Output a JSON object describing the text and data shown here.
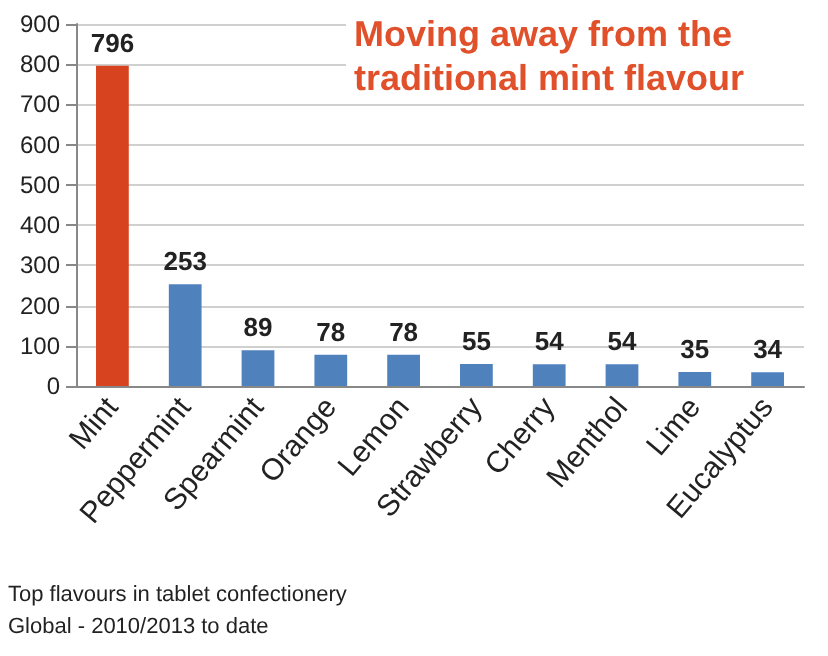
{
  "chart_data": {
    "type": "bar",
    "title": "Moving away from the traditional mint flavour",
    "categories": [
      "Mint",
      "Peppermint",
      "Spearmint",
      "Orange",
      "Lemon",
      "Strawberry",
      "Cherry",
      "Menthol",
      "Lime",
      "Eucalyptus"
    ],
    "values": [
      796,
      253,
      89,
      78,
      78,
      55,
      54,
      54,
      35,
      34
    ],
    "colors": [
      "#d7431f",
      "#4f81bd",
      "#4f81bd",
      "#4f81bd",
      "#4f81bd",
      "#4f81bd",
      "#4f81bd",
      "#4f81bd",
      "#4f81bd",
      "#4f81bd"
    ],
    "ylim": [
      0,
      900
    ],
    "yticks": [
      0,
      100,
      200,
      300,
      400,
      500,
      600,
      700,
      800,
      900
    ],
    "grid": "y",
    "data_labels": true,
    "annotations": [
      "Top flavours in tablet confectionery",
      "Global - 2010/2013 to date"
    ]
  }
}
